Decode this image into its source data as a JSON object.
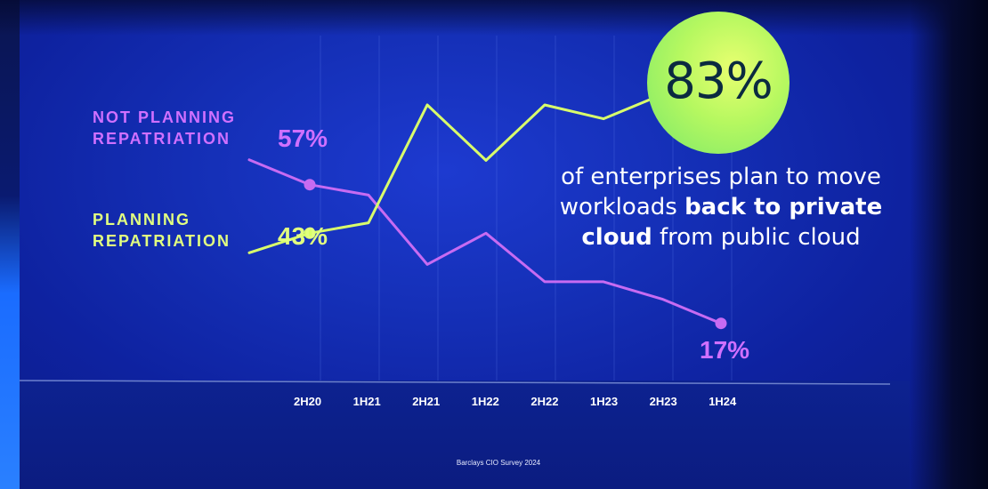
{
  "chart_data": {
    "type": "line",
    "categories": [
      "2H20",
      "1H21",
      "2H21",
      "1H22",
      "2H22",
      "1H23",
      "2H23",
      "1H24"
    ],
    "series": [
      {
        "name": "NOT PLANNING REPATRIATION",
        "color": "#c76bf2",
        "values": [
          57,
          54,
          34,
          43,
          29,
          29,
          24,
          17
        ]
      },
      {
        "name": "PLANNING REPATRIATION",
        "color": "#d9ff6b",
        "values": [
          43,
          46,
          80,
          64,
          80,
          76,
          83,
          null
        ]
      }
    ],
    "ylim": [
      0,
      100
    ],
    "grid": "vertical",
    "annotations": {
      "not_planning_start": "57%",
      "planning_start": "43%",
      "not_planning_end": "17%",
      "headline_value": "83%"
    }
  },
  "labels": {
    "not_planning_line1": "NOT PLANNING",
    "not_planning_line2": "REPATRIATION",
    "planning_line1": "PLANNING",
    "planning_line2": "REPATRIATION"
  },
  "headline": {
    "line1": "of enterprises plan to move",
    "line2_plain": "workloads ",
    "line2_bold": "back to private",
    "line3_bold": "cloud",
    "line3_plain": " from public cloud"
  },
  "source": "Barclays CIO Survey 2024",
  "colors": {
    "background": "#1530b8",
    "not_planning": "#c76bf2",
    "planning": "#d9ff6b",
    "highlight_circle": "#b6f860"
  }
}
